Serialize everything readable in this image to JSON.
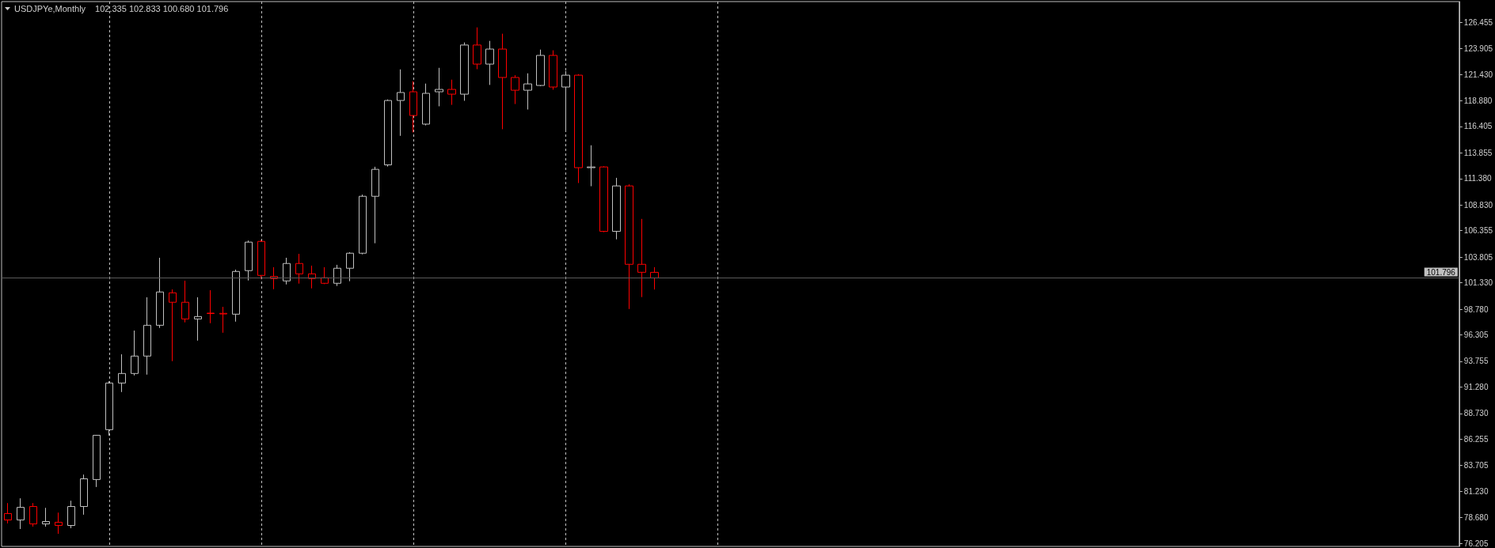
{
  "chart_data": {
    "type": "candlestick",
    "title": "USDJPYe,Monthly",
    "subtitle": "102.335 102.833 100.680 101.796",
    "categories": [
      null,
      null,
      null,
      null,
      null,
      null,
      null,
      null,
      null,
      null,
      null,
      null,
      null,
      null,
      null,
      null,
      null,
      null,
      null,
      null,
      null,
      null,
      null,
      null,
      null,
      null,
      null,
      null,
      null,
      null,
      null,
      null,
      null,
      null,
      null,
      null,
      null,
      null,
      null,
      null,
      null,
      null,
      null,
      null,
      null,
      null,
      null,
      null,
      null,
      null,
      null,
      null,
      null,
      null,
      null,
      null,
      null,
      null,
      null,
      null,
      null,
      null,
      null,
      null,
      null,
      null,
      null,
      null,
      null,
      null,
      null,
      null,
      null,
      null,
      null,
      null,
      null,
      null,
      null,
      null,
      null,
      null,
      null,
      null,
      null,
      null,
      null,
      null,
      null,
      null,
      null,
      null,
      null,
      null,
      null,
      null,
      null,
      null,
      null,
      null,
      null,
      null,
      null,
      null,
      null,
      null,
      null,
      null,
      null,
      null,
      null,
      null,
      null,
      null,
      null
    ],
    "ohlc": [
      [
        79.07,
        80.08,
        78.12,
        78.45
      ],
      [
        78.45,
        80.54,
        77.58,
        79.67
      ],
      [
        79.75,
        80.08,
        77.81,
        78.07
      ],
      [
        78.07,
        79.62,
        77.81,
        78.3
      ],
      [
        78.23,
        79.16,
        77.12,
        77.92
      ],
      [
        77.92,
        80.31,
        77.66,
        79.75
      ],
      [
        79.75,
        82.83,
        78.96,
        82.42
      ],
      [
        82.35,
        86.65,
        81.63,
        86.62
      ],
      [
        87.16,
        91.83,
        86.59,
        91.66
      ],
      [
        91.66,
        94.43,
        90.79,
        92.58
      ],
      [
        92.58,
        96.72,
        92.39,
        94.26
      ],
      [
        94.26,
        99.93,
        92.47,
        97.23
      ],
      [
        97.23,
        103.74,
        96.97,
        100.44
      ],
      [
        100.36,
        100.69,
        93.77,
        99.45
      ],
      [
        99.45,
        101.53,
        97.51,
        97.84
      ],
      [
        97.84,
        99.93,
        95.75,
        98.07
      ],
      [
        98.4,
        100.61,
        97.43,
        98.36
      ],
      [
        98.38,
        99.01,
        96.51,
        98.32
      ],
      [
        98.3,
        102.6,
        97.58,
        102.42
      ],
      [
        102.5,
        105.4,
        101.55,
        105.25
      ],
      [
        105.32,
        105.44,
        101.7,
        102.04
      ],
      [
        101.93,
        102.83,
        100.71,
        101.74
      ],
      [
        101.51,
        103.74,
        101.17,
        103.19
      ],
      [
        103.19,
        104.12,
        101.25,
        102.19
      ],
      [
        102.19,
        102.98,
        100.79,
        101.74
      ],
      [
        101.81,
        102.83,
        101.2,
        101.28
      ],
      [
        101.28,
        103.06,
        101.02,
        102.73
      ],
      [
        102.73,
        104.28,
        101.48,
        104.18
      ],
      [
        104.18,
        109.83,
        104.07,
        109.67
      ],
      [
        109.67,
        112.52,
        105.14,
        112.27
      ],
      [
        112.7,
        119.01,
        112.54,
        118.91
      ],
      [
        118.91,
        121.91,
        115.5,
        119.68
      ],
      [
        119.75,
        120.77,
        115.83,
        117.46
      ],
      [
        116.63,
        120.54,
        116.51,
        119.6
      ],
      [
        119.75,
        122.06,
        118.35,
        119.98
      ],
      [
        119.98,
        120.92,
        118.49,
        119.52
      ],
      [
        119.52,
        124.51,
        118.88,
        124.26
      ],
      [
        124.26,
        125.96,
        121.93,
        122.42
      ],
      [
        122.42,
        124.66,
        120.41,
        123.87
      ],
      [
        123.87,
        125.35,
        116.14,
        121.13
      ],
      [
        121.13,
        121.35,
        118.57,
        119.9
      ],
      [
        119.9,
        121.53,
        118.04,
        120.51
      ],
      [
        120.36,
        123.82,
        120.29,
        123.26
      ],
      [
        123.26,
        123.75,
        119.95,
        120.21
      ],
      [
        120.21,
        121.76,
        115.91,
        121.35
      ],
      [
        121.35,
        121.45,
        110.95,
        112.43
      ],
      [
        112.43,
        114.59,
        110.64,
        112.5
      ],
      [
        112.5,
        112.57,
        106.21,
        106.29
      ],
      [
        106.29,
        111.45,
        105.52,
        110.67
      ],
      [
        110.67,
        110.82,
        98.8,
        103.11
      ],
      [
        103.11,
        107.49,
        99.95,
        102.34
      ],
      [
        102.335,
        102.833,
        100.68,
        101.796
      ],
      null,
      null,
      null,
      null,
      null,
      null,
      null,
      null,
      null,
      null,
      null,
      null,
      null,
      null,
      null,
      null,
      null,
      null,
      null,
      null,
      null,
      null,
      null,
      null,
      null,
      null,
      null,
      null,
      null,
      null,
      null,
      null,
      null,
      null,
      null,
      null,
      null,
      null,
      null,
      null,
      null,
      null,
      null,
      null,
      null,
      null,
      null,
      null,
      null,
      null,
      null,
      null,
      null,
      null,
      null,
      null,
      null,
      null,
      null,
      null,
      null,
      null,
      null
    ],
    "colors": [
      "#ff0000",
      "#c0c0c0",
      "#ff0000",
      "#c0c0c0",
      "#ff0000",
      "#c0c0c0",
      "#c0c0c0",
      "#c0c0c0",
      "#c0c0c0",
      "#c0c0c0",
      "#c0c0c0",
      "#c0c0c0",
      "#c0c0c0",
      "#ff0000",
      "#ff0000",
      "#c0c0c0",
      "#ff0000",
      "#ff0000",
      "#c0c0c0",
      "#c0c0c0",
      "#ff0000",
      "#ff0000",
      "#c0c0c0",
      "#ff0000",
      "#ff0000",
      "#ff0000",
      "#c0c0c0",
      "#c0c0c0",
      "#c0c0c0",
      "#c0c0c0",
      "#c0c0c0",
      "#c0c0c0",
      "#ff0000",
      "#c0c0c0",
      "#c0c0c0",
      "#ff0000",
      "#c0c0c0",
      "#ff0000",
      "#c0c0c0",
      "#ff0000",
      "#ff0000",
      "#c0c0c0",
      "#c0c0c0",
      "#ff0000",
      "#c0c0c0",
      "#ff0000",
      "#c0c0c0",
      "#ff0000",
      "#c0c0c0",
      "#ff0000",
      "#ff0000",
      "#ff0000",
      null,
      null,
      null,
      null,
      null,
      null,
      null,
      null,
      null,
      null,
      null,
      null,
      null,
      null,
      null,
      null,
      null,
      null,
      null,
      null,
      null,
      null,
      null,
      null,
      null,
      null,
      null,
      null,
      null,
      null,
      null,
      null,
      null,
      null,
      null,
      null,
      null,
      null,
      null,
      null,
      null,
      null,
      null,
      null,
      null,
      null,
      null,
      null,
      null,
      null,
      null,
      null,
      null,
      null,
      null,
      null,
      null,
      null,
      null,
      null,
      null,
      null,
      null
    ],
    "ylim": [
      75.9,
      128.45
    ],
    "yticks": [
      126.455,
      123.905,
      {
        "value": 121.43,
        "label": "121.430"
      },
      {
        "value": 118.88,
        "label": "118.880"
      },
      116.405,
      113.855,
      {
        "value": 111.38,
        "label": "111.380"
      },
      {
        "value": 108.83,
        "label": "108.830"
      },
      106.355,
      103.805,
      {
        "value": 101.33,
        "label": "101.330"
      },
      {
        "value": 98.78,
        "label": "98.780"
      },
      96.305,
      93.755,
      {
        "value": 91.28,
        "label": "91.280"
      },
      {
        "value": 88.73,
        "label": "88.730"
      },
      86.255,
      83.705,
      {
        "value": 81.23,
        "label": "81.230"
      },
      {
        "value": 78.68,
        "label": "78.680"
      },
      76.205
    ],
    "ref_lines": [
      {
        "axis": "y",
        "value": 101.796,
        "label": "101.796",
        "color": "#5a5a5a"
      }
    ],
    "grid": "x",
    "tick_labels": "y"
  }
}
